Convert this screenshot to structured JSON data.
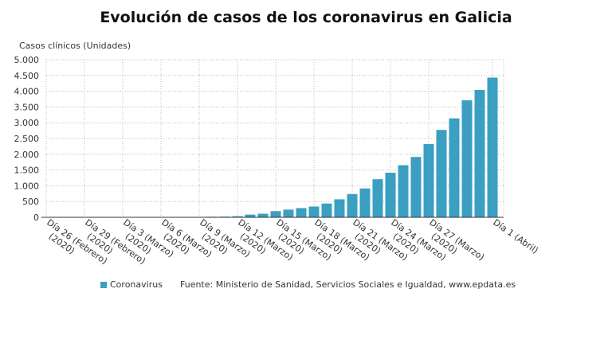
{
  "chart_data": {
    "type": "bar",
    "title": "Evolución de casos de los coronavirus en Galicia",
    "y_label": "Casos clínicos (Unidades)",
    "source": "Fuente: Ministerio de Sanidad, Servicios Sociales e Igualdad, www.epdata.es",
    "categories": [
      "Día 26 (Febrero)\n(2020)",
      null,
      null,
      "Día 29 (Febrero)\n(2020)",
      null,
      null,
      "Día 3 (Marzo)\n(2020)",
      null,
      null,
      "Día 6 (Marzo)\n(2020)",
      null,
      null,
      "Día 9 (Marzo)\n(2020)",
      null,
      null,
      "Día 12 (Marzo)\n(2020)",
      null,
      null,
      "Día 15 (Marzo)\n(2020)",
      null,
      null,
      "Día 18 (Marzo)\n(2020)",
      null,
      null,
      "Día 21 (Marzo)\n(2020)",
      null,
      null,
      "Día 24 (Marzo)\n(2020)",
      null,
      null,
      "Día 27 (Marzo)\n(2020)",
      null,
      null,
      null,
      null,
      "Día 1 (Abril)"
    ],
    "series": [
      {
        "name": "Coronavirus",
        "color": "#3a9fc1",
        "values": [
          0,
          0,
          0,
          0,
          0,
          0,
          0,
          1,
          1,
          1,
          3,
          4,
          6,
          18,
          22,
          35,
          85,
          115,
          195,
          245,
          292,
          341,
          436,
          570,
          738,
          915,
          1208,
          1415,
          1653,
          1914,
          2322,
          2772,
          3139,
          3712,
          4040,
          4432
        ]
      }
    ],
    "ylim": [
      0,
      5000
    ],
    "yticks": [
      0,
      500,
      {
        "value": 1000,
        "label": "1.000"
      },
      {
        "value": 1500,
        "label": "1.500"
      },
      {
        "value": 2000,
        "label": "2.000"
      },
      {
        "value": 2500,
        "label": "2.500"
      },
      {
        "value": 3000,
        "label": "3.000"
      },
      {
        "value": 3500,
        "label": "3.500"
      },
      {
        "value": 4000,
        "label": "4.000"
      },
      {
        "value": 4500,
        "label": "4.500"
      },
      {
        "value": 5000,
        "label": "5.000"
      }
    ],
    "grid": true
  }
}
